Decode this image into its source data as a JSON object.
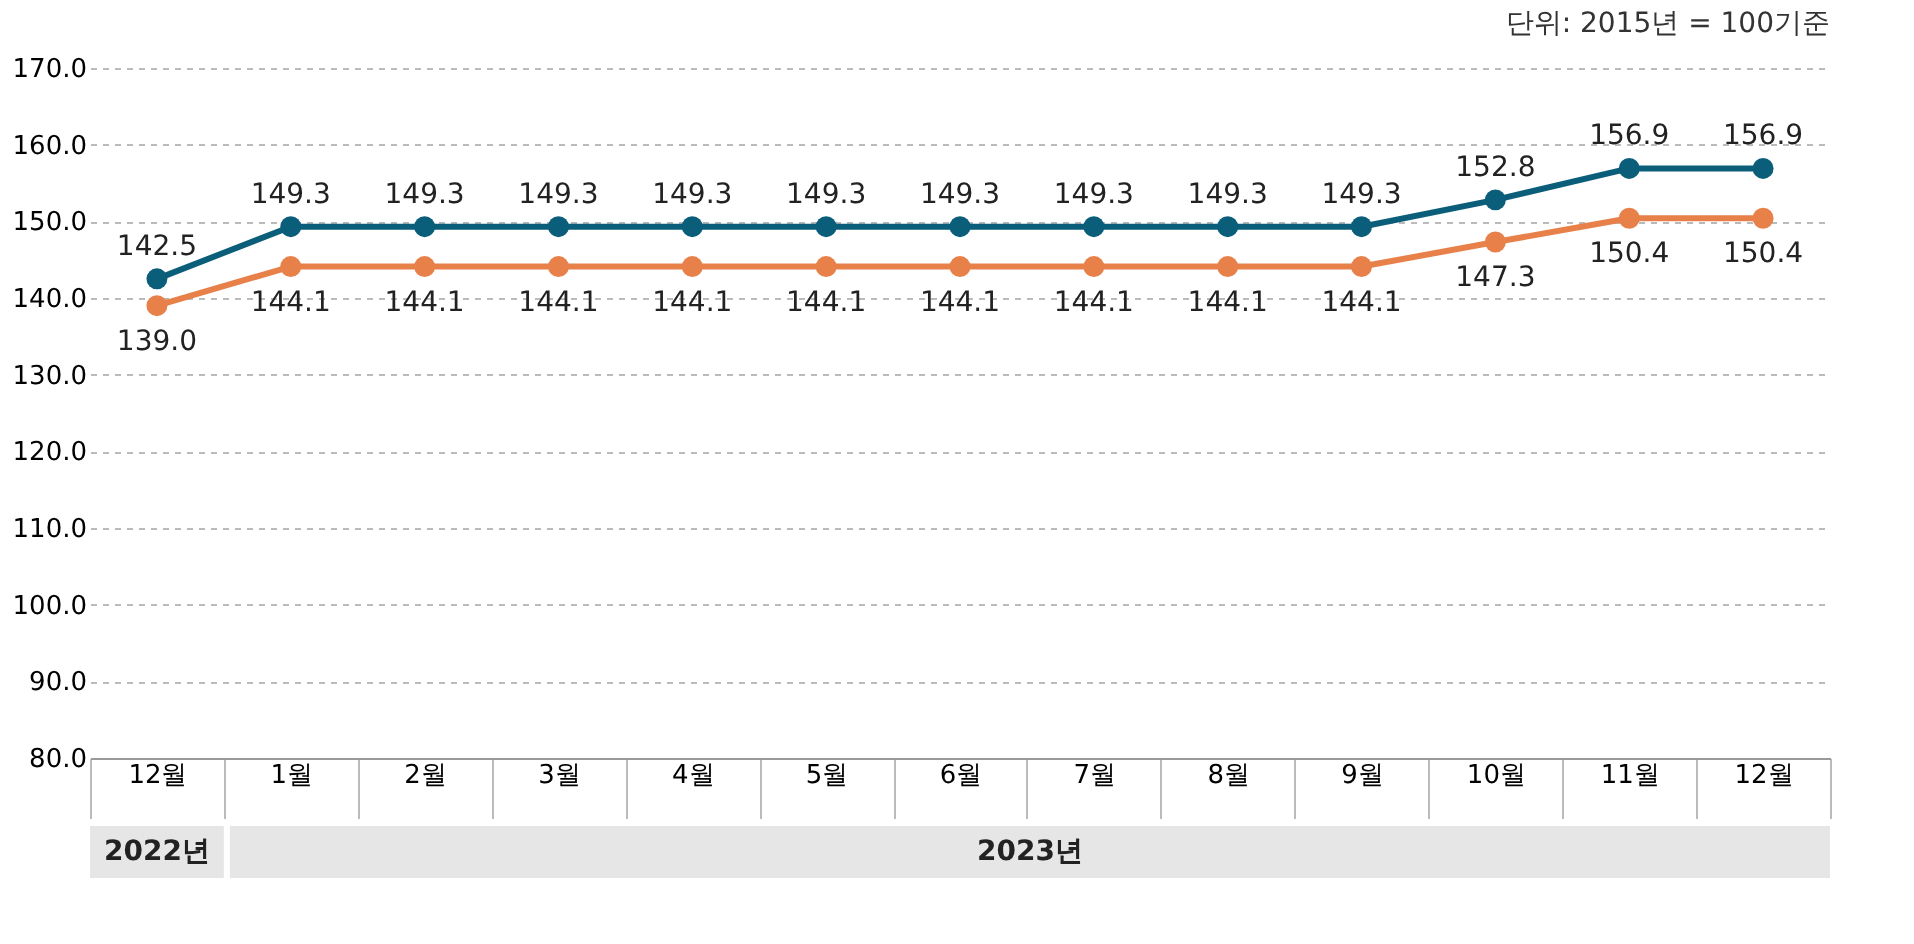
{
  "chart_data": {
    "type": "line",
    "categories": [
      "12월",
      "1월",
      "2월",
      "3월",
      "4월",
      "5월",
      "6월",
      "7월",
      "8월",
      "9월",
      "10월",
      "11월",
      "12월"
    ],
    "series": [
      {
        "color": "#0b5e7a",
        "values": [
          142.5,
          149.3,
          149.3,
          149.3,
          149.3,
          149.3,
          149.3,
          149.3,
          149.3,
          149.3,
          152.8,
          156.9,
          156.9
        ],
        "value_labels": [
          "142.5",
          "149.3",
          "149.3",
          "149.3",
          "149.3",
          "149.3",
          "149.3",
          "149.3",
          "149.3",
          "149.3",
          "152.8",
          "156.9",
          "156.9"
        ]
      },
      {
        "color": "#e8804a",
        "values": [
          139.0,
          144.1,
          144.1,
          144.1,
          144.1,
          144.1,
          144.1,
          144.1,
          144.1,
          144.1,
          147.3,
          150.4,
          150.4
        ],
        "value_labels": [
          "139.0",
          "144.1",
          "144.1",
          "144.1",
          "144.1",
          "144.1",
          "144.1",
          "144.1",
          "144.1",
          "144.1",
          "147.3",
          "150.4",
          "150.4"
        ]
      }
    ],
    "ylim": [
      80,
      170
    ],
    "yticks": [
      {
        "value": 80,
        "label": "80.0"
      },
      {
        "value": 90,
        "label": "90.0"
      },
      {
        "value": 100,
        "label": "100.0"
      },
      {
        "value": 110,
        "label": "110.0"
      },
      {
        "value": 120,
        "label": "120.0"
      },
      {
        "value": 130,
        "label": "130.0"
      },
      {
        "value": 140,
        "label": "140.0"
      },
      {
        "value": 150,
        "label": "150.0"
      },
      {
        "value": 160,
        "label": "160.0"
      },
      {
        "value": 170,
        "label": "170.0"
      }
    ],
    "grid": "y",
    "legend": false,
    "marker": "circle",
    "line_style": "solid",
    "annotations": [
      "단위: 2015년 = 100기준",
      "2022년",
      "2023년"
    ]
  }
}
